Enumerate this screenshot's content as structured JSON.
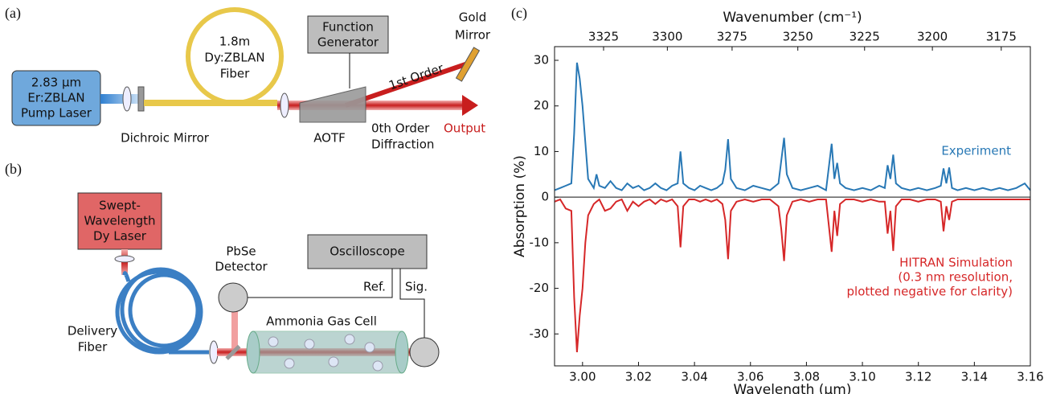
{
  "panel_a": {
    "label": "(a)",
    "pump_laser": [
      "2.83 μm",
      "Er:ZBLAN",
      "Pump Laser"
    ],
    "dichroic_mirror": "Dichroic Mirror",
    "fiber": [
      "1.8m",
      "Dy:ZBLAN",
      "Fiber"
    ],
    "function_generator": [
      "Function",
      "Generator"
    ],
    "gold_mirror": [
      "Gold",
      "Mirror"
    ],
    "first_order": "1st Order",
    "aotf": "AOTF",
    "zeroth_order": [
      "0th Order",
      "Diffraction"
    ],
    "output": "Output"
  },
  "panel_b": {
    "label": "(b)",
    "laser": [
      "Swept-",
      "Wavelength",
      "Dy Laser"
    ],
    "detector": [
      "PbSe",
      "Detector"
    ],
    "oscilloscope": "Oscilloscope",
    "ref": "Ref.",
    "sig": "Sig.",
    "gas_cell": "Ammonia Gas Cell",
    "delivery_fiber": [
      "Delivery",
      "Fiber"
    ]
  },
  "chart_data": {
    "type": "line",
    "panel_label": "(c)",
    "xlabel": "Wavelength (μm)",
    "ylabel": "Absorption (%)",
    "x2label": "Wavenumber (cm⁻¹)",
    "xlim": [
      2.99,
      3.16
    ],
    "xticks": [
      {
        "value": 3,
        "label": "3.00"
      },
      {
        "value": 3.02,
        "label": "3.02"
      },
      {
        "value": 3.04,
        "label": "3.04"
      },
      {
        "value": 3.06,
        "label": "3.06"
      },
      {
        "value": 3.08,
        "label": "3.08"
      },
      {
        "value": 3.1,
        "label": "3.10"
      },
      {
        "value": 3.12,
        "label": "3.12"
      },
      {
        "value": 3.14,
        "label": "3.14"
      },
      {
        "value": 3.16,
        "label": "3.16"
      }
    ],
    "x2ticks": [
      3325,
      3300,
      3275,
      3250,
      3225,
      3200,
      3175
    ],
    "ylim": [
      -37,
      33
    ],
    "yticks": [
      -30,
      -20,
      -10,
      0,
      10,
      20,
      30
    ],
    "x": [
      2.99,
      2.992,
      2.994,
      2.996,
      2.997,
      2.998,
      2.999,
      3.0,
      3.001,
      3.002,
      3.004,
      3.005,
      3.006,
      3.008,
      3.01,
      3.012,
      3.014,
      3.016,
      3.018,
      3.02,
      3.022,
      3.024,
      3.026,
      3.028,
      3.03,
      3.032,
      3.034,
      3.035,
      3.036,
      3.038,
      3.04,
      3.042,
      3.044,
      3.046,
      3.048,
      3.05,
      3.051,
      3.052,
      3.053,
      3.055,
      3.058,
      3.061,
      3.064,
      3.067,
      3.07,
      3.071,
      3.072,
      3.073,
      3.075,
      3.078,
      3.081,
      3.084,
      3.087,
      3.089,
      3.09,
      3.091,
      3.092,
      3.094,
      3.097,
      3.1,
      3.103,
      3.106,
      3.108,
      3.109,
      3.11,
      3.111,
      3.112,
      3.114,
      3.117,
      3.12,
      3.123,
      3.126,
      3.128,
      3.129,
      3.13,
      3.131,
      3.132,
      3.134,
      3.137,
      3.14,
      3.143,
      3.146,
      3.149,
      3.152,
      3.155,
      3.158,
      3.16
    ],
    "series": [
      {
        "name": "Experiment",
        "color": "#2878b5",
        "values": [
          1.5,
          2,
          2.5,
          3,
          14,
          29.5,
          26,
          20,
          12,
          4,
          2,
          5,
          2.5,
          2,
          3.5,
          2,
          1.5,
          3,
          2,
          2.5,
          1.5,
          2,
          3,
          2,
          1.5,
          2.5,
          3,
          10,
          3,
          2,
          1.5,
          2.5,
          2,
          1.5,
          2,
          3,
          6,
          12.7,
          4,
          2,
          1.5,
          2.5,
          2,
          1.5,
          3,
          8,
          13,
          5,
          2,
          1.5,
          2,
          2.5,
          1.5,
          11.7,
          4,
          7.5,
          3,
          2,
          1.5,
          2,
          1.5,
          2.5,
          2,
          7,
          4,
          9.3,
          3,
          2,
          1.5,
          2,
          1.5,
          2,
          2.5,
          6.3,
          3,
          6.5,
          2,
          1.5,
          2,
          1.5,
          2,
          1.5,
          2,
          1.5,
          2,
          3,
          1.5
        ]
      },
      {
        "name": "HITRAN Simulation",
        "color": "#d62728",
        "values": [
          -1,
          -0.5,
          -2.5,
          -3,
          -22,
          -34,
          -26,
          -20,
          -10,
          -4,
          -1.5,
          -1,
          -0.5,
          -3,
          -2.5,
          -1,
          -0.5,
          -3,
          -1,
          -2,
          -1,
          -0.5,
          -1.5,
          -0.5,
          -1,
          -0.5,
          -2,
          -11,
          -2,
          -0.5,
          -0.5,
          -1,
          -0.5,
          -1,
          -0.5,
          -1.5,
          -5,
          -13.6,
          -3,
          -1,
          -0.5,
          -1,
          -0.5,
          -0.5,
          -2,
          -7,
          -14,
          -4,
          -1,
          -0.5,
          -1,
          -0.5,
          -0.5,
          -12,
          -3,
          -8.5,
          -1.5,
          -0.5,
          -0.5,
          -1,
          -0.5,
          -1,
          -1,
          -8,
          -3,
          -11.8,
          -2,
          -0.5,
          -0.5,
          -1,
          -0.5,
          -0.5,
          -1,
          -7.5,
          -2,
          -5,
          -1,
          -0.5,
          -0.5,
          -0.5,
          -0.5,
          -0.5,
          -0.5,
          -0.5,
          -0.5,
          -0.5,
          -0.5
        ]
      }
    ],
    "annotations": [
      "(0.3 nm resolution,",
      "plotted negative for clarity)"
    ]
  }
}
